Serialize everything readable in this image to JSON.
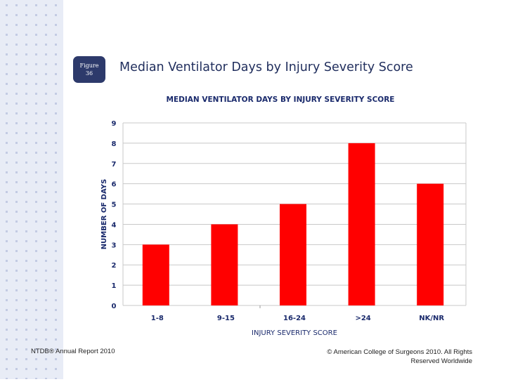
{
  "slide": {
    "figure_label": "Figure",
    "figure_number": "36",
    "title": "Median Ventilator Days by Injury Severity Score"
  },
  "footer": {
    "left": "NTDB® Annual Report 2010",
    "right": "© American College of Surgeons 2010. All Rights Reserved Worldwide"
  },
  "colors": {
    "bar": "#ff0000",
    "badge": "#2d3a6b",
    "title": "#1f2d5c",
    "chart_text": "#1a2a6c",
    "dot_strip": "#e8ecf6",
    "dots": "#c3cbe3"
  },
  "chart_data": {
    "type": "bar",
    "title": "MEDIAN VENTILATOR DAYS BY INJURY SEVERITY SCORE",
    "xlabel": "INJURY SEVERITY SCORE",
    "ylabel": "NUMBER OF DAYS",
    "categories": [
      "1-8",
      "9-15",
      "16-24",
      ">24",
      "NK/NR"
    ],
    "values": [
      3,
      4,
      5,
      8,
      6
    ],
    "ylim": [
      0,
      9
    ],
    "yticks": [
      0,
      1,
      2,
      3,
      4,
      5,
      6,
      7,
      8,
      9
    ],
    "grid": true,
    "legend": "none"
  }
}
